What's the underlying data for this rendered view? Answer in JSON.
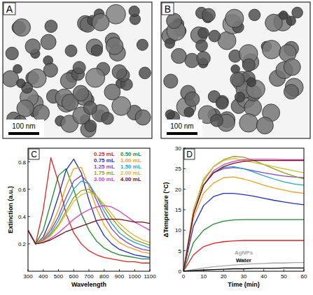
{
  "images": [
    {
      "label": "A",
      "scale_bar": "100 nm"
    },
    {
      "label": "B",
      "scale_bar": "100 nm"
    }
  ],
  "chart_data": [
    {
      "type": "line",
      "panel": "C",
      "x_label": "Wavelength",
      "y_label": "Extinction (a.u.)",
      "x": [
        300,
        350,
        400,
        450,
        500,
        550,
        600,
        650,
        700,
        750,
        800,
        850,
        900,
        950,
        1000,
        1050,
        1100
      ],
      "xlim": [
        300,
        1100
      ],
      "xticks": [
        300,
        400,
        500,
        600,
        700,
        800,
        900,
        1000,
        1100
      ],
      "ylim": [
        0,
        0.9
      ],
      "yticks": [
        0.2,
        0.4,
        0.6,
        0.8
      ],
      "legend": "upper right",
      "series": [
        {
          "name": "0.25 mL",
          "color": "#e3231f",
          "values": [
            0.3,
            0.2,
            0.45,
            0.83,
            0.65,
            0.42,
            0.28,
            0.2,
            0.15,
            0.12,
            0.1,
            0.09,
            0.08,
            0.07,
            0.07,
            0.06,
            0.06
          ]
        },
        {
          "name": "0.50 mL",
          "color": "#1a8c2a",
          "values": [
            0.3,
            0.2,
            0.3,
            0.5,
            0.7,
            0.75,
            0.6,
            0.42,
            0.3,
            0.22,
            0.17,
            0.14,
            0.12,
            0.11,
            0.1,
            0.09,
            0.09
          ]
        },
        {
          "name": "0.75 mL",
          "color": "#1f2fc8",
          "values": [
            0.3,
            0.2,
            0.25,
            0.38,
            0.55,
            0.74,
            0.82,
            0.72,
            0.52,
            0.36,
            0.26,
            0.2,
            0.16,
            0.14,
            0.12,
            0.11,
            0.1
          ]
        },
        {
          "name": "1.00 mL",
          "color": "#f0a01e",
          "values": [
            0.3,
            0.2,
            0.24,
            0.32,
            0.45,
            0.62,
            0.75,
            0.76,
            0.62,
            0.46,
            0.34,
            0.26,
            0.21,
            0.18,
            0.16,
            0.14,
            0.13
          ]
        },
        {
          "name": "1.25 mL",
          "color": "#8a3fc2",
          "values": [
            0.3,
            0.2,
            0.23,
            0.3,
            0.4,
            0.54,
            0.66,
            0.7,
            0.64,
            0.52,
            0.4,
            0.31,
            0.25,
            0.21,
            0.18,
            0.16,
            0.15
          ]
        },
        {
          "name": "1.50 mL",
          "color": "#22a3d6",
          "values": [
            0.3,
            0.2,
            0.22,
            0.28,
            0.37,
            0.49,
            0.6,
            0.66,
            0.64,
            0.55,
            0.44,
            0.35,
            0.28,
            0.24,
            0.21,
            0.19,
            0.17
          ]
        },
        {
          "name": "1.75 mL",
          "color": "#9a9a1c",
          "values": [
            0.3,
            0.2,
            0.22,
            0.27,
            0.34,
            0.44,
            0.54,
            0.59,
            0.6,
            0.55,
            0.47,
            0.39,
            0.32,
            0.27,
            0.23,
            0.21,
            0.19
          ]
        },
        {
          "name": "2.00 mL",
          "color": "#d9b832",
          "values": [
            0.3,
            0.2,
            0.22,
            0.26,
            0.33,
            0.42,
            0.51,
            0.56,
            0.58,
            0.55,
            0.49,
            0.42,
            0.35,
            0.3,
            0.26,
            0.23,
            0.21
          ]
        },
        {
          "name": "3.00 mL",
          "color": "#d43fbf",
          "values": [
            0.3,
            0.2,
            0.21,
            0.24,
            0.28,
            0.33,
            0.38,
            0.42,
            0.45,
            0.47,
            0.48,
            0.47,
            0.44,
            0.4,
            0.36,
            0.33,
            0.3
          ]
        },
        {
          "name": "4.00 mL",
          "color": "#7a1010",
          "values": [
            0.3,
            0.2,
            0.21,
            0.23,
            0.26,
            0.29,
            0.31,
            0.33,
            0.35,
            0.37,
            0.38,
            0.38,
            0.38,
            0.37,
            0.36,
            0.36,
            0.35
          ]
        }
      ]
    },
    {
      "type": "line",
      "panel": "D",
      "x_label": "Time (min)",
      "y_label": "ΔTemperature (°C)",
      "x": [
        0,
        5,
        10,
        15,
        20,
        25,
        30,
        35,
        40,
        45,
        50,
        55,
        60
      ],
      "xlim": [
        0,
        60
      ],
      "xticks": [
        0,
        10,
        20,
        30,
        40,
        50,
        60
      ],
      "ylim": [
        0,
        30
      ],
      "yticks": [
        0,
        5,
        10,
        15,
        20,
        25,
        30
      ],
      "series": [
        {
          "color": "#e3231f",
          "values": [
            0,
            4,
            6,
            6.8,
            7.2,
            7.4,
            7.5,
            7.5,
            7.5,
            7.5,
            7.5,
            7.5,
            7.5
          ]
        },
        {
          "color": "#1a8c2a",
          "values": [
            0,
            7,
            10,
            11.5,
            12.2,
            12.5,
            12.6,
            12.6,
            12.6,
            12.6,
            12.6,
            12.6,
            12.6
          ]
        },
        {
          "color": "#1f2fc8",
          "values": [
            0,
            11,
            16,
            18.2,
            19,
            19,
            18.7,
            18.3,
            17.8,
            17.3,
            16.9,
            16.5,
            16.2
          ]
        },
        {
          "color": "#f0a01e",
          "values": [
            0,
            13,
            19,
            21.5,
            22.8,
            23,
            22.5,
            21.8,
            21,
            20.3,
            19.8,
            19.3,
            19
          ]
        },
        {
          "color": "#8a3fc2",
          "values": [
            0,
            14,
            21,
            24,
            25,
            25.3,
            25,
            24.5,
            24,
            23.6,
            23.2,
            23,
            22.8
          ]
        },
        {
          "color": "#22a3d6",
          "values": [
            0,
            14,
            21,
            24,
            25.3,
            25.5,
            25,
            24.2,
            23.3,
            22.5,
            21.8,
            21.3,
            21
          ]
        },
        {
          "color": "#9a9a1c",
          "values": [
            0,
            15,
            22,
            25.5,
            27.2,
            28,
            27.8,
            27,
            26,
            25,
            24,
            23.2,
            22.5
          ]
        },
        {
          "color": "#d9b832",
          "values": [
            0,
            15,
            22.5,
            25.5,
            27,
            27.5,
            27,
            26.5,
            26,
            25.5,
            25,
            24.5,
            24
          ]
        },
        {
          "color": "#d43fbf",
          "values": [
            0,
            14,
            21,
            24.5,
            26,
            26.8,
            27.2,
            27.3,
            27.3,
            27.3,
            27.2,
            27.2,
            27.2
          ]
        },
        {
          "color": "#7a1010",
          "values": [
            0,
            14,
            21,
            24,
            25.5,
            26.3,
            26.8,
            27,
            27,
            27,
            27,
            27,
            27
          ]
        },
        {
          "name": "AgNPs",
          "color": "#a6a6a6",
          "values": [
            0,
            0.4,
            0.8,
            1.1,
            1.3,
            1.5,
            1.7,
            1.8,
            1.9,
            2,
            2,
            2.1,
            2.1
          ]
        },
        {
          "name": "Water",
          "color": "#000000",
          "values": [
            0,
            0.2,
            0.3,
            0.4,
            0.5,
            0.6,
            0.6,
            0.7,
            0.7,
            0.7,
            0.8,
            0.8,
            0.8
          ]
        }
      ]
    }
  ]
}
